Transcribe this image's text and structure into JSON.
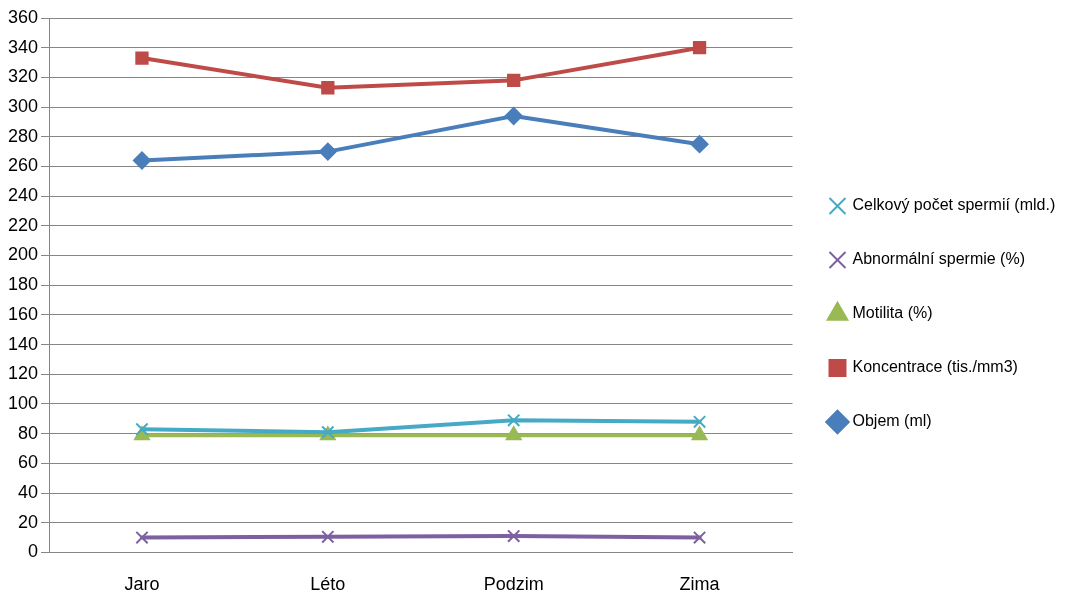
{
  "chart_data": {
    "type": "line",
    "categories": [
      "Jaro",
      "Léto",
      "Podzim",
      "Zima"
    ],
    "series": [
      {
        "name": "Objem (ml)",
        "color": "#4a7ebb",
        "marker": "diamond",
        "values": [
          264,
          270,
          294,
          275
        ]
      },
      {
        "name": "Koncentrace (tis./mm3)",
        "color": "#be4b48",
        "marker": "square",
        "values": [
          333,
          313,
          318,
          340
        ]
      },
      {
        "name": "Motilita (%)",
        "color": "#98b954",
        "marker": "triangle",
        "values": [
          79,
          79,
          79,
          79
        ]
      },
      {
        "name": "Abnormální spermie (%)",
        "color": "#7d60a0",
        "marker": "cross",
        "values": [
          10,
          10.5,
          11,
          10
        ]
      },
      {
        "name": "Celkový počet spermií (mld.)",
        "color": "#46aac5",
        "marker": "cross",
        "values": [
          83,
          81,
          89,
          88
        ]
      }
    ],
    "ylim": [
      0,
      360
    ],
    "yticks": [
      0,
      20,
      40,
      60,
      80,
      100,
      120,
      140,
      160,
      180,
      200,
      220,
      240,
      260,
      280,
      300,
      320,
      340,
      360
    ],
    "grid": "y",
    "legend": "right",
    "line_style": "solid"
  }
}
